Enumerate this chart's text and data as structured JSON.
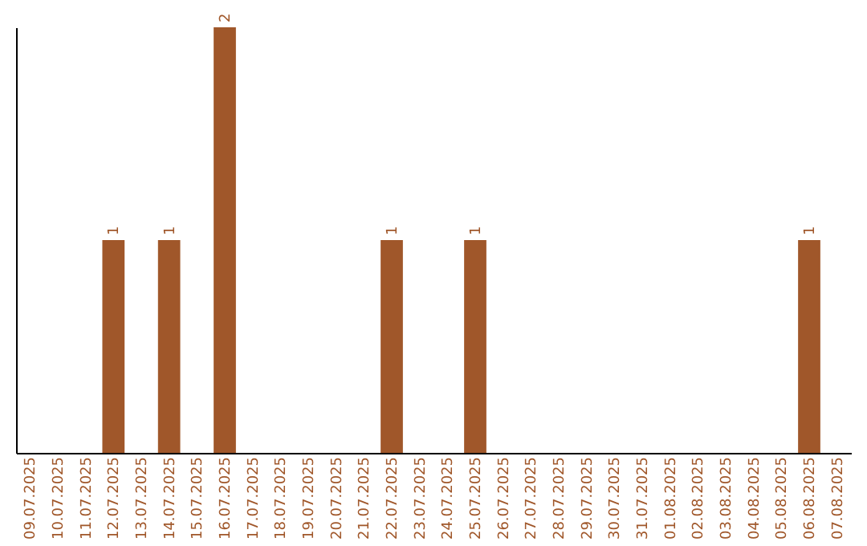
{
  "chart_data": {
    "type": "bar",
    "categories": [
      "09.07.2025",
      "10.07.2025",
      "11.07.2025",
      "12.07.2025",
      "13.07.2025",
      "14.07.2025",
      "15.07.2025",
      "16.07.2025",
      "17.07.2025",
      "18.07.2025",
      "19.07.2025",
      "20.07.2025",
      "21.07.2025",
      "22.07.2025",
      "23.07.2025",
      "24.07.2025",
      "25.07.2025",
      "26.07.2025",
      "27.07.2025",
      "28.07.2025",
      "29.07.2025",
      "30.07.2025",
      "31.07.2025",
      "01.08.2025",
      "02.08.2025",
      "03.08.2025",
      "04.08.2025",
      "05.08.2025",
      "06.08.2025",
      "07.08.2025"
    ],
    "values": [
      0,
      0,
      0,
      1,
      0,
      1,
      0,
      2,
      0,
      0,
      0,
      0,
      0,
      1,
      0,
      0,
      1,
      0,
      0,
      0,
      0,
      0,
      0,
      0,
      0,
      0,
      0,
      0,
      1,
      0
    ],
    "value_labels": [
      null,
      null,
      null,
      "1",
      null,
      "1",
      null,
      "2",
      null,
      null,
      null,
      null,
      null,
      "1",
      null,
      null,
      "1",
      null,
      null,
      null,
      null,
      null,
      null,
      null,
      null,
      null,
      null,
      null,
      "1",
      null
    ],
    "color": "#a0572a",
    "ylim": [
      0,
      2
    ],
    "tick_labels": "x",
    "grid": false
  }
}
